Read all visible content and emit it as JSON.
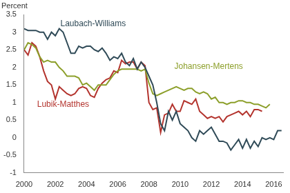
{
  "chart_data": {
    "type": "line",
    "ylabel": "Percent",
    "x": [
      2000,
      2000.25,
      2000.5,
      2000.75,
      2001,
      2001.25,
      2001.5,
      2001.75,
      2002,
      2002.25,
      2002.5,
      2002.75,
      2003,
      2003.25,
      2003.5,
      2003.75,
      2004,
      2004.25,
      2004.5,
      2004.75,
      2005,
      2005.25,
      2005.5,
      2005.75,
      2006,
      2006.25,
      2006.5,
      2006.75,
      2007,
      2007.25,
      2007.5,
      2007.75,
      2008,
      2008.25,
      2008.5,
      2008.75,
      2009,
      2009.25,
      2009.5,
      2009.75,
      2010,
      2010.25,
      2010.5,
      2010.75,
      2011,
      2011.25,
      2011.5,
      2011.75,
      2012,
      2012.25,
      2012.5,
      2012.75,
      2013,
      2013.25,
      2013.5,
      2013.75,
      2014,
      2014.25,
      2014.5,
      2014.75,
      2015,
      2015.25,
      2015.5,
      2015.75,
      2016,
      2016.25,
      2016.5
    ],
    "series": [
      {
        "name": "Laubach-Williams",
        "color": "#2f4a57",
        "values": [
          3.1,
          3.05,
          3.05,
          3.05,
          3.0,
          3.0,
          2.8,
          3.0,
          2.9,
          3.1,
          3.0,
          2.7,
          2.4,
          2.4,
          2.6,
          2.55,
          2.6,
          2.6,
          2.5,
          2.45,
          2.55,
          2.4,
          2.2,
          2.3,
          2.25,
          2.4,
          2.15,
          2.05,
          2.25,
          1.95,
          2.15,
          2.0,
          1.75,
          1.5,
          1.0,
          0.4,
          0.2,
          0.75,
          0.5,
          0.75,
          0.4,
          0.3,
          0.2,
          0.0,
          -0.1,
          0.2,
          0.1,
          0.2,
          0.3,
          0.1,
          -0.1,
          -0.1,
          -0.15,
          -0.35,
          -0.2,
          -0.05,
          -0.3,
          -0.05,
          -0.3,
          -0.1,
          -0.25,
          0.0,
          -0.05,
          0.0,
          -0.05,
          0.2,
          0.2
        ]
      },
      {
        "name": "Johansen-Mertens",
        "color": "#8c9f2a",
        "values": [
          2.5,
          2.7,
          2.65,
          2.55,
          2.3,
          2.15,
          2.2,
          2.15,
          2.15,
          2.0,
          1.9,
          1.75,
          1.75,
          1.75,
          1.7,
          1.5,
          1.55,
          1.45,
          1.35,
          1.5,
          1.5,
          1.5,
          1.65,
          1.8,
          1.9,
          1.95,
          1.95,
          1.95,
          1.95,
          1.95,
          1.9,
          1.95,
          1.55,
          1.25,
          1.2,
          1.25,
          1.3,
          1.35,
          1.4,
          1.45,
          1.4,
          1.35,
          1.4,
          1.4,
          1.3,
          1.25,
          1.3,
          1.25,
          1.1,
          1.15,
          1.0,
          1.0,
          0.95,
          1.0,
          1.0,
          1.05,
          1.05,
          1.0,
          1.0,
          0.95,
          0.95,
          0.9,
          0.85,
          0.95,
          null,
          null,
          null
        ]
      },
      {
        "name": "Lubik-Matthes",
        "color": "#b3332d",
        "values": [
          2.5,
          2.35,
          2.7,
          2.6,
          2.3,
          1.9,
          1.6,
          1.5,
          1.1,
          1.45,
          1.35,
          1.25,
          1.2,
          1.25,
          1.4,
          1.45,
          1.4,
          1.2,
          1.15,
          1.4,
          1.55,
          1.65,
          1.7,
          1.9,
          1.85,
          2.2,
          2.1,
          2.15,
          2.15,
          1.95,
          2.15,
          2.05,
          1.0,
          0.8,
          0.85,
          0.15,
          0.65,
          0.7,
          0.95,
          0.75,
          0.75,
          1.05,
          1.0,
          0.95,
          1.1,
          0.75,
          0.65,
          0.55,
          0.6,
          0.55,
          0.6,
          0.45,
          0.6,
          0.65,
          0.7,
          0.75,
          0.65,
          0.75,
          0.6,
          0.8,
          0.8,
          0.75,
          null,
          null,
          null,
          null,
          null
        ]
      }
    ],
    "xlim": [
      2000,
      2016.6
    ],
    "xticks": [
      2000,
      2002,
      2004,
      2006,
      2008,
      2010,
      2012,
      2014,
      2016
    ],
    "ylim": [
      -1,
      3.5
    ],
    "yticks": [
      -1,
      -0.5,
      0,
      0.5,
      1,
      1.5,
      2,
      2.5,
      3,
      3.5
    ],
    "grid": false,
    "legend": "none"
  }
}
